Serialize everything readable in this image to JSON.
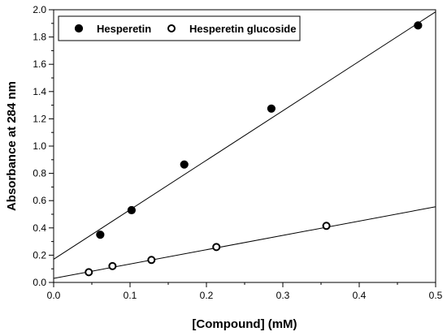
{
  "chart_data": {
    "type": "scatter",
    "xlabel": "[Compound]  (mM)",
    "ylabel": "Absorbance at 284 nm",
    "xlim": [
      0,
      0.5
    ],
    "ylim": [
      0,
      2.0
    ],
    "x_ticks": [
      0.0,
      0.1,
      0.2,
      0.3,
      0.4,
      0.5
    ],
    "x_tick_labels": [
      "0.0",
      "0.1",
      "0.2",
      "0.3",
      "0.4",
      "0.5"
    ],
    "y_ticks": [
      0.0,
      0.2,
      0.4,
      0.6,
      0.8,
      1.0,
      1.2,
      1.4,
      1.6,
      1.8,
      2.0
    ],
    "y_tick_labels": [
      "0.0",
      "0.2",
      "0.4",
      "0.6",
      "0.8",
      "1.0",
      "1.2",
      "1.4",
      "1.6",
      "1.8",
      "2.0"
    ],
    "grid": false,
    "legend_position": "top-left",
    "series": [
      {
        "name": "Hesperetin",
        "marker": "filled-circle",
        "color": "#000000",
        "points": [
          {
            "x": 0.061,
            "y": 0.35
          },
          {
            "x": 0.102,
            "y": 0.53
          },
          {
            "x": 0.171,
            "y": 0.865
          },
          {
            "x": 0.285,
            "y": 1.275
          },
          {
            "x": 0.477,
            "y": 1.885
          }
        ],
        "fit_line": {
          "x": [
            0,
            0.5
          ],
          "y": [
            0.17,
            1.985
          ]
        }
      },
      {
        "name": "Hesperetin glucoside",
        "marker": "open-circle",
        "color": "#000000",
        "points": [
          {
            "x": 0.046,
            "y": 0.075
          },
          {
            "x": 0.077,
            "y": 0.12
          },
          {
            "x": 0.128,
            "y": 0.165
          },
          {
            "x": 0.213,
            "y": 0.26
          },
          {
            "x": 0.357,
            "y": 0.415
          }
        ],
        "fit_line": {
          "x": [
            0,
            0.5
          ],
          "y": [
            0.03,
            0.555
          ]
        }
      }
    ]
  }
}
